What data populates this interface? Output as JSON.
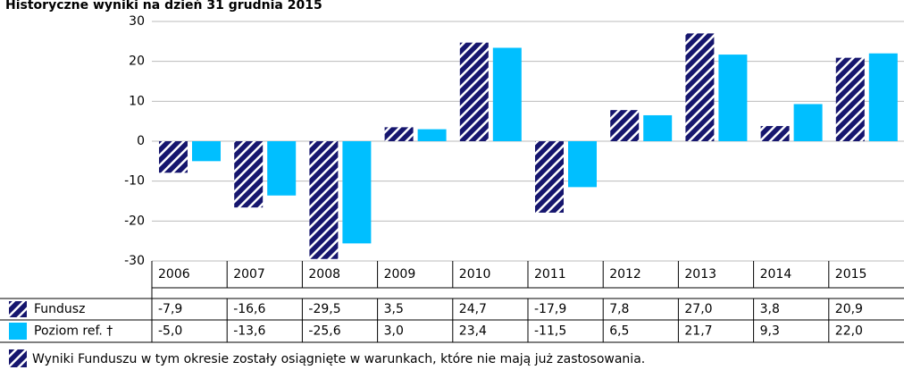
{
  "chart_data": {
    "type": "bar",
    "title": "Historyczne wyniki na dzień 31 grudnia 2015",
    "categories": [
      "2006",
      "2007",
      "2008",
      "2009",
      "2010",
      "2011",
      "2012",
      "2013",
      "2014",
      "2015"
    ],
    "series": [
      {
        "name": "Fundusz",
        "color": "#16166e",
        "pattern": "hatch",
        "values": [
          -7.9,
          -16.6,
          -29.5,
          3.5,
          24.7,
          -17.9,
          7.8,
          27.0,
          3.8,
          20.9
        ],
        "value_labels": [
          "-7,9",
          "-16,6",
          "-29,5",
          "3,5",
          "24,7",
          "-17,9",
          "7,8",
          "27,0",
          "3,8",
          "20,9"
        ]
      },
      {
        "name": "Poziom ref. †",
        "color": "#00bfff",
        "values": [
          -5.0,
          -13.6,
          -25.6,
          3.0,
          23.4,
          -11.5,
          6.5,
          21.7,
          9.3,
          22.0
        ],
        "value_labels": [
          "-5,0",
          "-13,6",
          "-25,6",
          "3,0",
          "23,4",
          "-11,5",
          "6,5",
          "21,7",
          "9,3",
          "22,0"
        ]
      }
    ],
    "ylim": [
      -30,
      30
    ],
    "yticks": [
      -30,
      -20,
      -10,
      0,
      10,
      20,
      30
    ],
    "grid": true,
    "note": "Wyniki Funduszu w tym okresie zostały osiągnięte w warunkach, które nie mają już zastosowania."
  }
}
